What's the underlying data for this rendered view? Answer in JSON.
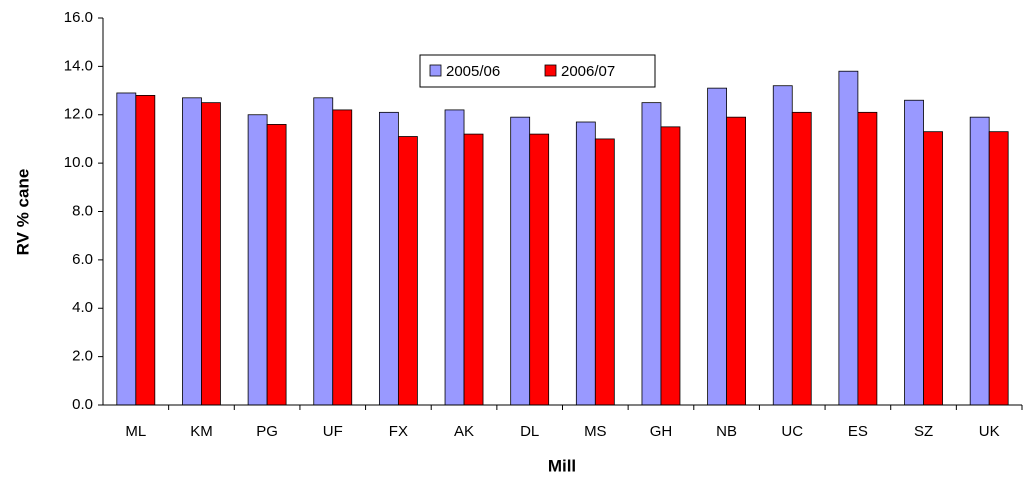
{
  "chart_data": {
    "type": "bar",
    "x_label": "Mill",
    "y_label": "RV % cane",
    "categories": [
      "ML",
      "KM",
      "PG",
      "UF",
      "FX",
      "AK",
      "DL",
      "MS",
      "GH",
      "NB",
      "UC",
      "ES",
      "SZ",
      "UK"
    ],
    "series": [
      {
        "name": "2005/06",
        "color": "#9999ff",
        "values": [
          12.9,
          12.7,
          12.0,
          12.7,
          12.1,
          12.2,
          11.9,
          11.7,
          12.5,
          13.1,
          13.2,
          13.8,
          12.6,
          11.9
        ]
      },
      {
        "name": "2006/07",
        "color": "#ff0000",
        "values": [
          12.8,
          12.5,
          11.6,
          12.2,
          11.1,
          11.2,
          11.2,
          11.0,
          11.5,
          11.9,
          12.1,
          12.1,
          11.3,
          11.3
        ]
      }
    ],
    "ylim": [
      0,
      16
    ],
    "yticks": [
      {
        "value": 0,
        "label": "0.0"
      },
      {
        "value": 2,
        "label": "2.0"
      },
      {
        "value": 4,
        "label": "4.0"
      },
      {
        "value": 6,
        "label": "6.0"
      },
      {
        "value": 8,
        "label": "8.0"
      },
      {
        "value": 10,
        "label": "10.0"
      },
      {
        "value": 12,
        "label": "12.0"
      },
      {
        "value": 14,
        "label": "14.0"
      },
      {
        "value": 16,
        "label": "16.0"
      }
    ],
    "grid": false,
    "legend": "top"
  }
}
